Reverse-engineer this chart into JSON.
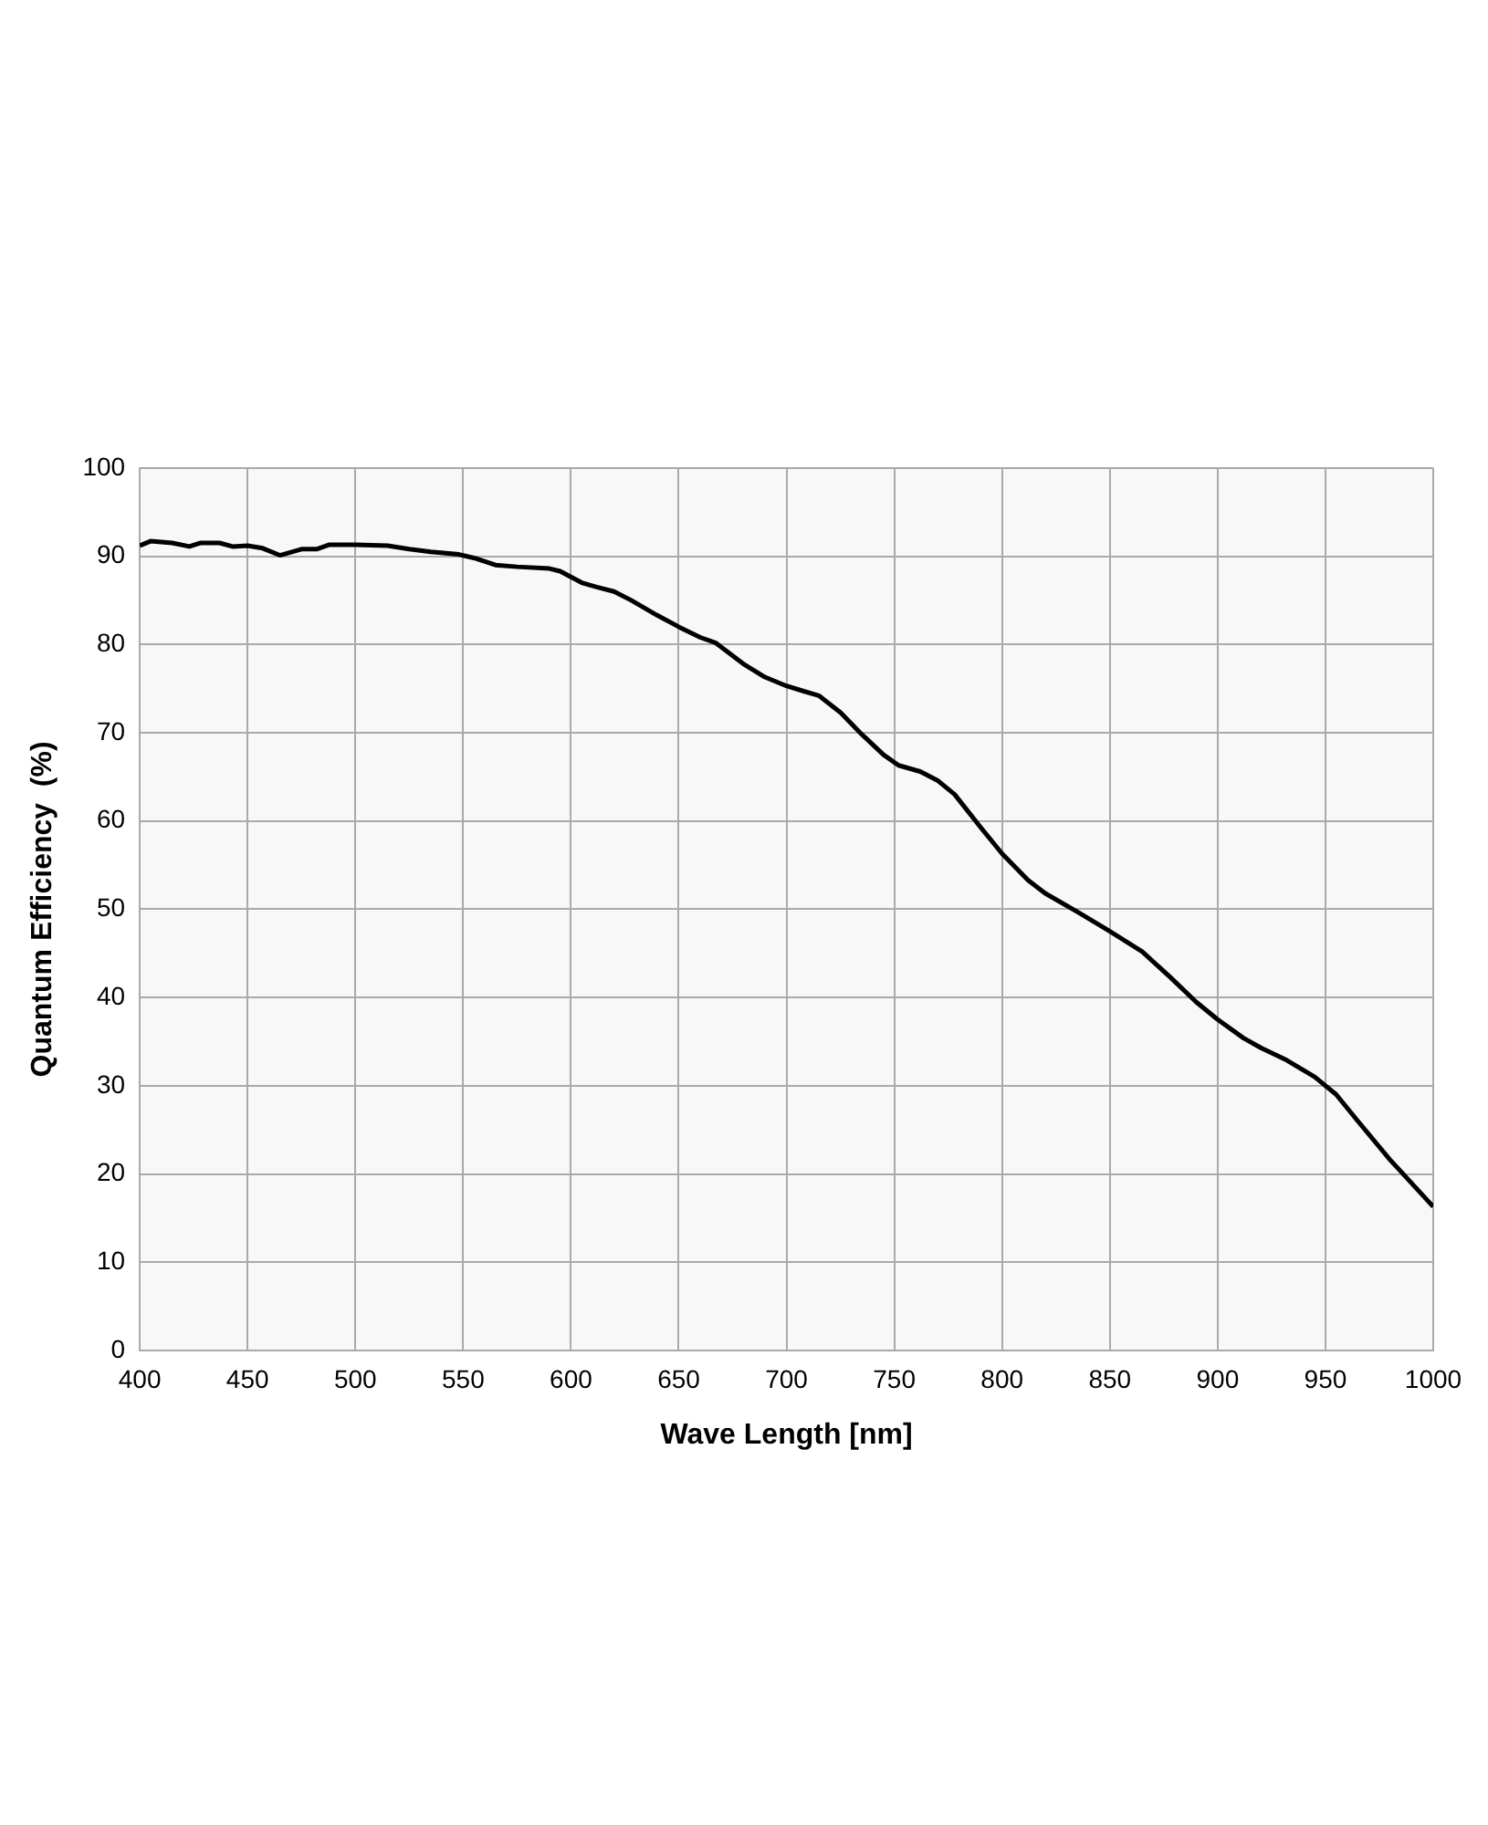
{
  "chart_data": {
    "type": "line",
    "xlabel": "Wave Length [nm]",
    "ylabel": "Quantum Efficiency  (%)",
    "x": [
      400,
      405,
      415,
      423,
      428,
      437,
      443,
      450,
      457,
      465,
      475,
      482,
      488,
      500,
      515,
      525,
      535,
      548,
      555,
      565,
      575,
      590,
      595,
      605,
      612,
      620,
      628,
      640,
      650,
      660,
      667,
      680,
      690,
      700,
      708,
      715,
      725,
      735,
      745,
      752,
      762,
      770,
      778,
      790,
      800,
      812,
      820,
      835,
      850,
      865,
      878,
      890,
      900,
      912,
      920,
      932,
      945,
      955,
      965,
      980,
      1000
    ],
    "series": [
      {
        "color": "#000000",
        "values": [
          91.2,
          91.7,
          91.5,
          91.1,
          91.5,
          91.5,
          91.1,
          91.2,
          90.9,
          90.1,
          90.8,
          90.8,
          91.3,
          91.3,
          91.2,
          90.8,
          90.5,
          90.2,
          89.8,
          89.0,
          88.8,
          88.6,
          88.3,
          87.0,
          86.5,
          86.0,
          85.0,
          83.3,
          82.0,
          80.8,
          80.2,
          77.8,
          76.3,
          75.3,
          74.7,
          74.2,
          72.3,
          69.8,
          67.5,
          66.3,
          65.6,
          64.6,
          63.0,
          59.3,
          56.3,
          53.3,
          51.8,
          49.7,
          47.5,
          45.2,
          42.3,
          39.5,
          37.5,
          35.4,
          34.3,
          32.9,
          31.0,
          29.0,
          26.0,
          21.6,
          16.3
        ]
      }
    ],
    "xlim": [
      400,
      1000
    ],
    "xticks": [
      400,
      450,
      500,
      550,
      600,
      650,
      700,
      750,
      800,
      850,
      900,
      950,
      1000
    ],
    "ylim": [
      0,
      100
    ],
    "yticks": [
      0,
      10,
      20,
      30,
      40,
      50,
      60,
      70,
      80,
      90,
      100
    ],
    "grid": true,
    "legend": false,
    "marker": "none",
    "line_style": "solid"
  }
}
